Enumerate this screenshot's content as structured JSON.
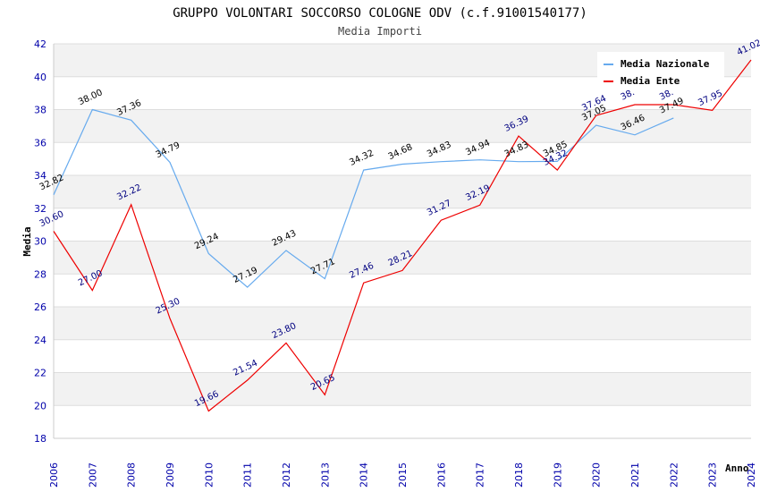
{
  "chart_data": {
    "type": "line",
    "title": "GRUPPO VOLONTARI SOCCORSO COLOGNE ODV (c.f.91001540177)",
    "subtitle": "Media Importi",
    "xlabel": "Anno",
    "ylabel": "Media",
    "ylim": [
      18,
      42
    ],
    "yticks": [
      "18",
      "20",
      "22",
      "24",
      "26",
      "28",
      "30",
      "32",
      "34",
      "36",
      "38",
      "40",
      "42"
    ],
    "categories": [
      "2006",
      "2007",
      "2008",
      "2009",
      "2010",
      "2011",
      "2012",
      "2013",
      "2014",
      "2015",
      "2016",
      "2017",
      "2018",
      "2019",
      "2020",
      "2021",
      "2022",
      "2023",
      "2024"
    ],
    "grid": true,
    "legend_position": "top-right",
    "series": [
      {
        "name": "Media Nazionale",
        "color": "#66aaee",
        "values": [
          32.82,
          38.0,
          37.36,
          34.79,
          29.24,
          27.19,
          29.43,
          27.71,
          34.32,
          34.68,
          34.83,
          34.94,
          34.83,
          34.85,
          37.05,
          36.46,
          37.49,
          null,
          null
        ],
        "labels": [
          "32.82",
          "38.00",
          "37.36",
          "34.79",
          "29.24",
          "27.19",
          "29.43",
          "27.71",
          "34.32",
          "34.68",
          "34.83",
          "34.94",
          "34.83",
          "34.85",
          "37.05",
          "36.46",
          "37.49",
          "",
          ""
        ]
      },
      {
        "name": "Media Ente",
        "color": "#ee0000",
        "values": [
          30.6,
          27.0,
          32.22,
          25.3,
          19.66,
          21.54,
          23.8,
          20.65,
          27.46,
          28.21,
          31.27,
          32.19,
          36.39,
          34.32,
          37.64,
          38.3,
          38.3,
          37.95,
          41.02
        ],
        "labels": [
          "30.60",
          "27.00",
          "32.22",
          "25.30",
          "19.66",
          "21.54",
          "23.80",
          "20.65",
          "27.46",
          "28.21",
          "31.27",
          "32.19",
          "36.39",
          "34.32",
          "37.64",
          "38.",
          "38.",
          "37.95",
          "41.02"
        ]
      }
    ]
  }
}
